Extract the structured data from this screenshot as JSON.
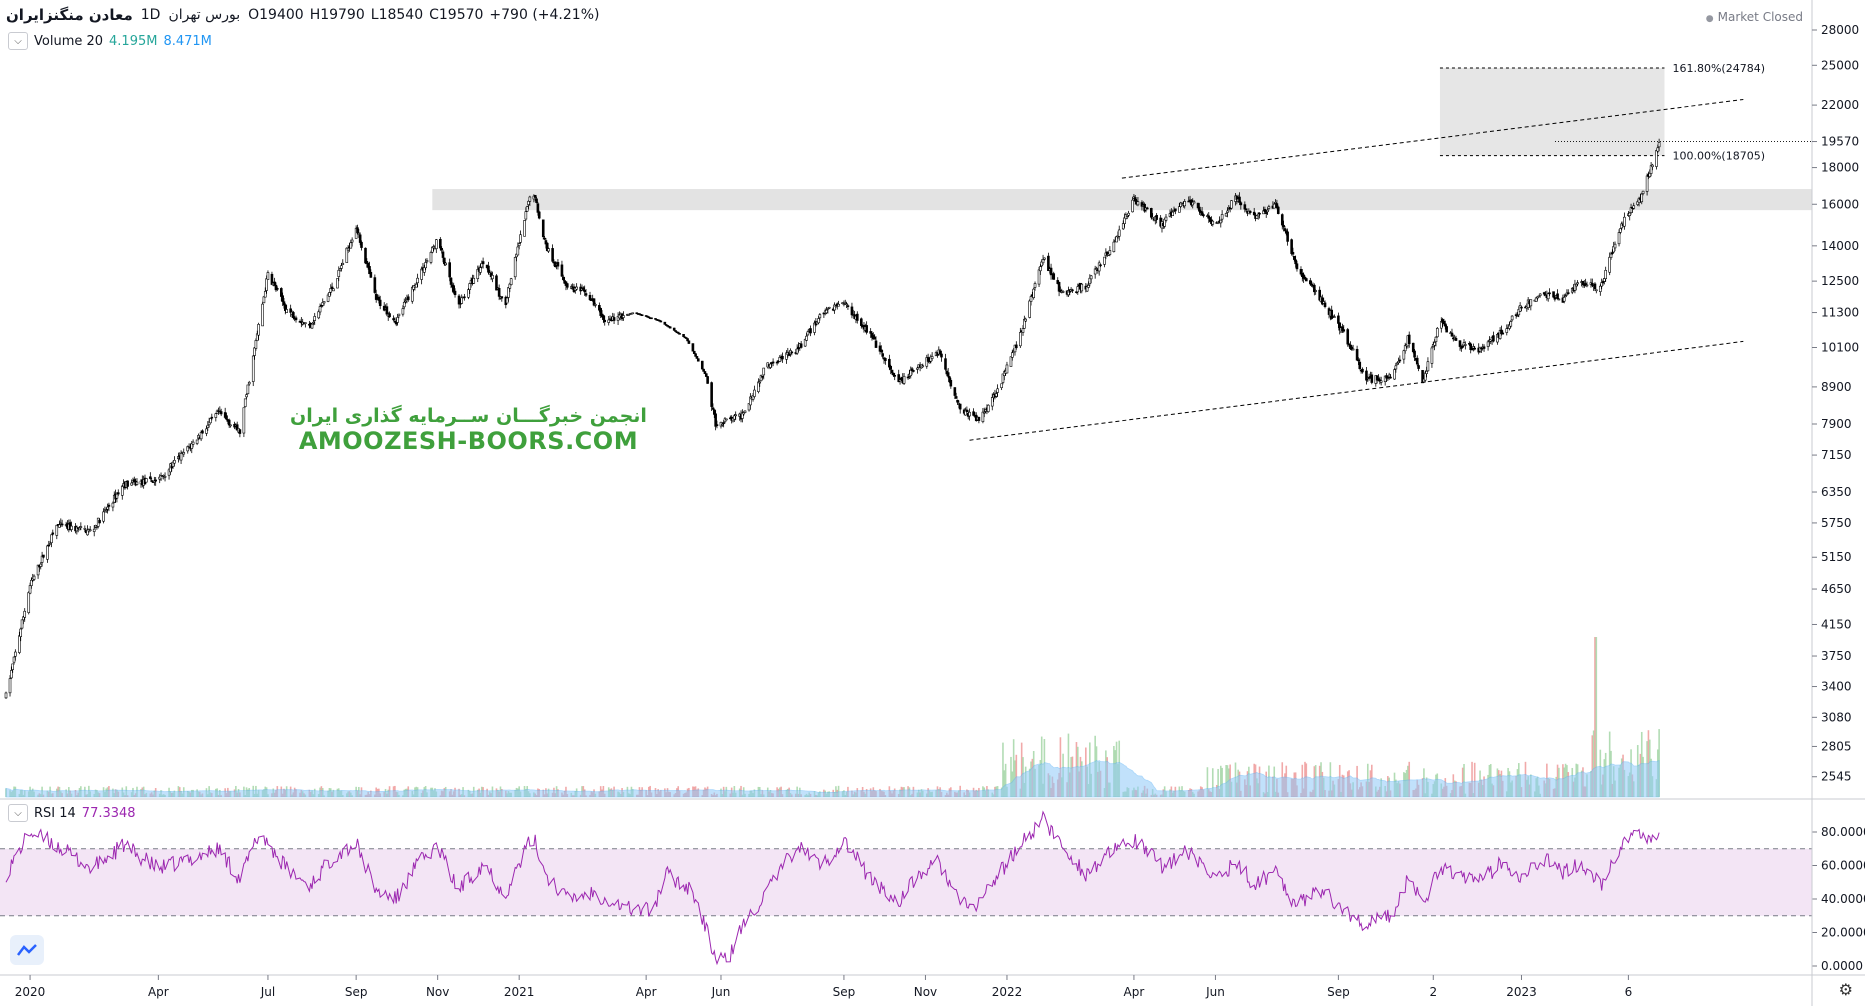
{
  "header": {
    "symbol": "معادن منگنزایران",
    "timeframe": "1D",
    "exchange": "بورس تهران",
    "open": "O19400",
    "high": "H19790",
    "low": "L18540",
    "close": "C19570",
    "change": "+790 (+4.21%)"
  },
  "status": "Market Closed",
  "volume_legend": {
    "label": "Volume 20",
    "value1": "4.195M",
    "value2": "8.471M"
  },
  "rsi_legend": {
    "label": "RSI 14",
    "value": "77.3348"
  },
  "watermark": {
    "fa": "انجمن خبرگـــان ســرمایه گذاری ایران",
    "en": "AMOOZESH-BOORS.COM"
  },
  "colors": {
    "up": "#26a69a",
    "down": "#ef5350",
    "candle": "#000000",
    "rsi": "#9c27b0",
    "rsi_band": "#f3e5f5",
    "volume_ma": "#64b5f6",
    "watermark": "#3fa03c"
  },
  "chart_data": {
    "type": "candlestick",
    "price_axis": {
      "scale": "log",
      "ticks": [
        2545,
        2805,
        3080,
        3400,
        3750,
        4150,
        4650,
        5150,
        5750,
        6350,
        7150,
        7900,
        8900,
        10100,
        11300,
        12500,
        14000,
        16000,
        18000,
        19570,
        22000,
        25000,
        28000
      ],
      "last_price": 19570
    },
    "time_axis": {
      "labels": [
        "2020",
        "Apr",
        "Jul",
        "Sep",
        "Nov",
        "2021",
        "Apr",
        "Jun",
        "Sep",
        "Nov",
        "2022",
        "Apr",
        "Jun",
        "Sep",
        "2",
        "2023",
        "6"
      ]
    },
    "price_path": [
      [
        "2019-12-18",
        3300
      ],
      [
        "2020-01-05",
        4700
      ],
      [
        "2020-01-25",
        5700
      ],
      [
        "2020-02-20",
        5600
      ],
      [
        "2020-03-15",
        6500
      ],
      [
        "2020-04-10",
        6600
      ],
      [
        "2020-05-05",
        7400
      ],
      [
        "2020-05-25",
        8200
      ],
      [
        "2020-06-10",
        7700
      ],
      [
        "2020-06-20",
        9800
      ],
      [
        "2020-07-01",
        12800
      ],
      [
        "2020-07-15",
        11400
      ],
      [
        "2020-08-01",
        10800
      ],
      [
        "2020-08-20",
        12400
      ],
      [
        "2020-09-05",
        14900
      ],
      [
        "2020-09-20",
        11800
      ],
      [
        "2020-10-05",
        11000
      ],
      [
        "2020-10-20",
        12500
      ],
      [
        "2020-11-05",
        14300
      ],
      [
        "2020-11-20",
        11500
      ],
      [
        "2020-12-10",
        13400
      ],
      [
        "2020-12-25",
        11500
      ],
      [
        "2021-01-10",
        15500
      ],
      [
        "2021-01-15",
        16900
      ],
      [
        "2021-01-25",
        14000
      ],
      [
        "2021-02-10",
        12300
      ],
      [
        "2021-02-25",
        12000
      ],
      [
        "2021-03-10",
        11000
      ],
      [
        "2021-04-01",
        11300
      ],
      [
        "2021-04-20",
        11000
      ],
      [
        "2021-05-10",
        10400
      ],
      [
        "2021-05-25",
        9200
      ],
      [
        "2021-06-01",
        7900
      ],
      [
        "2021-06-20",
        8100
      ],
      [
        "2021-07-10",
        9600
      ],
      [
        "2021-08-01",
        10000
      ],
      [
        "2021-08-20",
        11300
      ],
      [
        "2021-09-05",
        11700
      ],
      [
        "2021-09-25",
        10500
      ],
      [
        "2021-10-15",
        9000
      ],
      [
        "2021-11-01",
        9500
      ],
      [
        "2021-11-15",
        10000
      ],
      [
        "2021-12-01",
        8300
      ],
      [
        "2021-12-15",
        8000
      ],
      [
        "2021-12-30",
        8900
      ],
      [
        "2022-01-15",
        10500
      ],
      [
        "2022-02-01",
        13500
      ],
      [
        "2022-02-15",
        12000
      ],
      [
        "2022-03-05",
        12300
      ],
      [
        "2022-03-25",
        14000
      ],
      [
        "2022-04-10",
        16300
      ],
      [
        "2022-05-01",
        15000
      ],
      [
        "2022-05-20",
        16300
      ],
      [
        "2022-06-10",
        15000
      ],
      [
        "2022-06-25",
        16300
      ],
      [
        "2022-07-10",
        15300
      ],
      [
        "2022-07-25",
        16000
      ],
      [
        "2022-08-10",
        13000
      ],
      [
        "2022-08-25",
        12000
      ],
      [
        "2022-09-15",
        10500
      ],
      [
        "2022-10-01",
        9100
      ],
      [
        "2022-10-20",
        9200
      ],
      [
        "2022-11-01",
        10400
      ],
      [
        "2022-11-12",
        9000
      ],
      [
        "2022-11-25",
        11000
      ],
      [
        "2022-12-10",
        10200
      ],
      [
        "2022-12-25",
        10000
      ],
      [
        "2023-01-10",
        10600
      ],
      [
        "2023-01-25",
        11500
      ],
      [
        "2023-02-10",
        12000
      ],
      [
        "2023-02-25",
        11800
      ],
      [
        "2023-03-10",
        12500
      ],
      [
        "2023-03-25",
        12200
      ],
      [
        "2023-04-10",
        15000
      ],
      [
        "2023-04-25",
        16500
      ],
      [
        "2023-05-08",
        19570
      ]
    ],
    "annotations": {
      "fib_161": "161.80%(24784)",
      "fib_100": "100.00%(18705)",
      "fib_zone": [
        18705,
        24784
      ],
      "resistance_zone": [
        15700,
        16800
      ],
      "channel_upper": [
        [
          "2022-04-01",
          17400
        ],
        [
          "2023-07-10",
          22400
        ]
      ],
      "channel_lower": [
        [
          "2021-12-08",
          7500
        ],
        [
          "2023-07-10",
          10300
        ]
      ]
    },
    "rsi": {
      "period": 14,
      "upper_band": 70,
      "lower_band": 30,
      "ticks": [
        "80.0000",
        "60.0000",
        "40.0000",
        "20.0000",
        "0.0000"
      ],
      "path": [
        [
          "2019-12-18",
          55
        ],
        [
          "2020-01-05",
          80
        ],
        [
          "2020-01-25",
          72
        ],
        [
          "2020-02-20",
          58
        ],
        [
          "2020-03-15",
          72
        ],
        [
          "2020-04-10",
          58
        ],
        [
          "2020-05-05",
          64
        ],
        [
          "2020-05-25",
          70
        ],
        [
          "2020-06-10",
          52
        ],
        [
          "2020-06-25",
          80
        ],
        [
          "2020-07-15",
          58
        ],
        [
          "2020-08-01",
          48
        ],
        [
          "2020-08-20",
          66
        ],
        [
          "2020-09-05",
          73
        ],
        [
          "2020-09-20",
          45
        ],
        [
          "2020-10-05",
          40
        ],
        [
          "2020-10-20",
          60
        ],
        [
          "2020-11-05",
          72
        ],
        [
          "2020-11-20",
          45
        ],
        [
          "2020-12-10",
          62
        ],
        [
          "2020-12-25",
          42
        ],
        [
          "2021-01-15",
          78
        ],
        [
          "2021-01-25",
          55
        ],
        [
          "2021-02-10",
          40
        ],
        [
          "2021-03-01",
          44
        ],
        [
          "2021-03-25",
          35
        ],
        [
          "2021-04-15",
          33
        ],
        [
          "2021-04-25",
          55
        ],
        [
          "2021-05-15",
          45
        ],
        [
          "2021-06-01",
          5
        ],
        [
          "2021-06-10",
          3
        ],
        [
          "2021-06-20",
          22
        ],
        [
          "2021-07-10",
          45
        ],
        [
          "2021-08-01",
          72
        ],
        [
          "2021-08-20",
          60
        ],
        [
          "2021-09-05",
          75
        ],
        [
          "2021-09-25",
          52
        ],
        [
          "2021-10-15",
          38
        ],
        [
          "2021-11-01",
          55
        ],
        [
          "2021-11-15",
          62
        ],
        [
          "2021-12-01",
          38
        ],
        [
          "2021-12-10",
          33
        ],
        [
          "2021-12-30",
          55
        ],
        [
          "2022-01-15",
          72
        ],
        [
          "2022-02-01",
          88
        ],
        [
          "2022-02-15",
          72
        ],
        [
          "2022-03-05",
          55
        ],
        [
          "2022-03-25",
          68
        ],
        [
          "2022-04-10",
          75
        ],
        [
          "2022-05-01",
          60
        ],
        [
          "2022-05-20",
          68
        ],
        [
          "2022-06-10",
          52
        ],
        [
          "2022-06-25",
          62
        ],
        [
          "2022-07-10",
          48
        ],
        [
          "2022-07-25",
          58
        ],
        [
          "2022-08-10",
          35
        ],
        [
          "2022-08-25",
          48
        ],
        [
          "2022-09-15",
          32
        ],
        [
          "2022-10-01",
          25
        ],
        [
          "2022-10-20",
          30
        ],
        [
          "2022-11-01",
          52
        ],
        [
          "2022-11-15",
          40
        ],
        [
          "2022-11-25",
          60
        ],
        [
          "2022-12-10",
          55
        ],
        [
          "2022-12-25",
          50
        ],
        [
          "2023-01-10",
          62
        ],
        [
          "2023-01-25",
          54
        ],
        [
          "2023-02-10",
          65
        ],
        [
          "2023-02-25",
          55
        ],
        [
          "2023-03-10",
          62
        ],
        [
          "2023-03-25",
          48
        ],
        [
          "2023-04-10",
          70
        ],
        [
          "2023-04-20",
          82
        ],
        [
          "2023-04-28",
          72
        ],
        [
          "2023-05-08",
          77.3348
        ]
      ]
    }
  }
}
